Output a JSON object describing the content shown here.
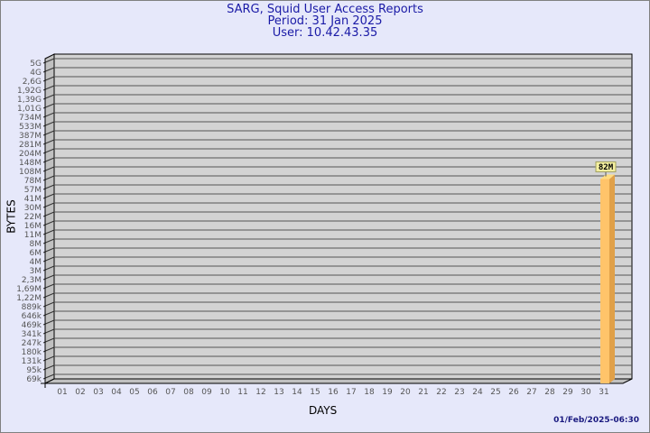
{
  "title": {
    "line1": "SARG, Squid User Access Reports",
    "line2": "Period: 31 Jan 2025",
    "line3": "User: 10.42.43.35"
  },
  "footer_timestamp": "01/Feb/2025-06:30",
  "colors": {
    "background": "#e6e8fa",
    "plot": "#d3d3d3",
    "bar_front": "#ffc46a",
    "bar_side": "#e0a048",
    "title": "#1a1aa6"
  },
  "chart_data": {
    "type": "bar",
    "xlabel": "DAYS",
    "ylabel": "BYTES",
    "y_scale": "log",
    "grid": true,
    "y_ticks": [
      "5G",
      "4G",
      "2,6G",
      "1,92G",
      "1,39G",
      "1,01G",
      "734M",
      "533M",
      "387M",
      "281M",
      "204M",
      "148M",
      "108M",
      "78M",
      "57M",
      "41M",
      "30M",
      "22M",
      "16M",
      "11M",
      "8M",
      "6M",
      "4M",
      "3M",
      "2,3M",
      "1,69M",
      "1,22M",
      "889k",
      "646k",
      "469k",
      "341k",
      "247k",
      "180k",
      "131k",
      "95k",
      "69k"
    ],
    "categories": [
      "01",
      "02",
      "03",
      "04",
      "05",
      "06",
      "07",
      "08",
      "09",
      "10",
      "11",
      "12",
      "13",
      "14",
      "15",
      "16",
      "17",
      "18",
      "19",
      "20",
      "21",
      "22",
      "23",
      "24",
      "25",
      "26",
      "27",
      "28",
      "29",
      "30",
      "31"
    ],
    "bars": [
      {
        "day": "31",
        "value": 82000000,
        "label": "82M"
      }
    ]
  }
}
